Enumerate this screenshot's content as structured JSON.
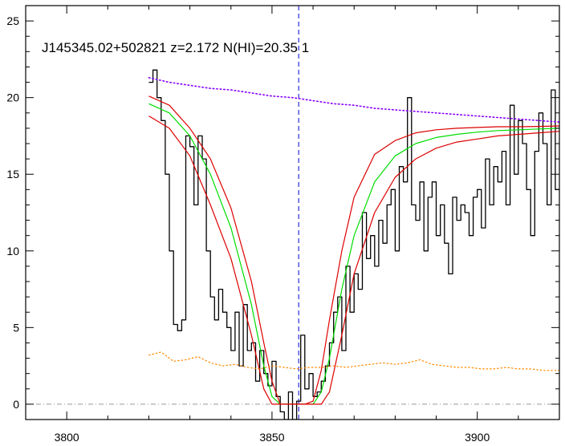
{
  "chart_data": {
    "type": "line",
    "title": "J145345.02+502821 z=2.172 N(HI)=20.35 1",
    "xlabel": "",
    "ylabel": "",
    "xlim": [
      3790,
      3920
    ],
    "ylim": [
      -1,
      26
    ],
    "x_ticks": [
      3800,
      3850,
      3900
    ],
    "x_tick_labels": [
      "3800",
      "3850",
      "3900"
    ],
    "y_ticks": [
      0,
      5,
      10,
      15,
      20,
      25
    ],
    "y_tick_labels": [
      "0",
      "5",
      "10",
      "15",
      "20",
      "25"
    ],
    "grid": false,
    "legend": "none",
    "colors": {
      "flux": "#000000",
      "model": "#00dd00",
      "model_bounds": "#dd0000",
      "continuum": "#8800ff",
      "error": "#ff8800",
      "zero_line": "#999999",
      "center_line": "#0000cc"
    },
    "center_wavelength": 3856.5,
    "zero_level": 0,
    "series": [
      {
        "style": "step",
        "x": [
          3820.5,
          3821.5,
          3822.5,
          3823.5,
          3824.5,
          3825.5,
          3826.5,
          3827.5,
          3828.5,
          3829.5,
          3830.5,
          3831.5,
          3832.5,
          3833.5,
          3834.5,
          3835.5,
          3836.5,
          3837.5,
          3838.5,
          3839.5,
          3840.5,
          3841.5,
          3842.5,
          3843.5,
          3844.5,
          3845.5,
          3846.5,
          3847.5,
          3848.5,
          3849.5,
          3850.5,
          3851.5,
          3852.5,
          3853.5,
          3854.5,
          3855.5,
          3856.5,
          3857.5,
          3858.5,
          3859.5,
          3860.5,
          3861.5,
          3862.5,
          3863.5,
          3864.5,
          3865.5,
          3866.5,
          3867.5,
          3868.5,
          3869.5,
          3870.5,
          3871.5,
          3872.5,
          3873.5,
          3874.5,
          3875.5,
          3876.5,
          3877.5,
          3878.5,
          3879.5,
          3880.5,
          3881.5,
          3882.5,
          3883.5,
          3884.5,
          3885.5,
          3886.5,
          3887.5,
          3888.5,
          3889.5,
          3890.5,
          3891.5,
          3892.5,
          3893.5,
          3894.5,
          3895.5,
          3896.5,
          3897.5,
          3898.5,
          3899.5,
          3900.5,
          3901.5,
          3902.5,
          3903.5,
          3904.5,
          3905.5,
          3906.5,
          3907.5,
          3908.5,
          3909.5,
          3910.5,
          3911.5,
          3912.5,
          3913.5,
          3914.5,
          3915.5,
          3916.5,
          3917.5,
          3918.5,
          3919.5
        ],
        "y": [
          21.0,
          21.8,
          20.0,
          18.5,
          15.0,
          10.0,
          5.2,
          4.8,
          5.5,
          17.5,
          16.8,
          13.0,
          17.5,
          16.0,
          10.0,
          7.0,
          5.5,
          7.5,
          6.0,
          5.0,
          3.5,
          6.0,
          2.5,
          6.5,
          3.5,
          4.0,
          1.5,
          3.5,
          2.0,
          1.2,
          2.8,
          0.5,
          -0.5,
          -1.0,
          0.8,
          -1.0,
          0.2,
          4.5,
          1.0,
          2.0,
          0.5,
          0.8,
          1.5,
          2.5,
          4.0,
          6.0,
          7.0,
          3.5,
          9.0,
          6.0,
          8.5,
          7.5,
          12.5,
          9.5,
          11.0,
          9.0,
          12.0,
          10.5,
          13.0,
          14.0,
          10.0,
          15.5,
          14.5,
          20.0,
          13.0,
          12.0,
          14.5,
          10.0,
          13.5,
          14.5,
          11.0,
          13.0,
          10.5,
          8.5,
          13.5,
          12.0,
          13.0,
          12.5,
          11.0,
          13.5,
          14.0,
          11.5,
          16.0,
          13.0,
          15.5,
          14.5,
          16.5,
          13.0,
          19.5,
          15.0,
          18.5,
          17.0,
          14.0,
          11.0,
          16.5,
          19.0,
          17.0,
          13.0,
          20.5,
          14.0
        ]
      },
      {
        "style": "line",
        "x": [
          3820,
          3825,
          3830,
          3835,
          3840,
          3845,
          3848,
          3850,
          3852,
          3854,
          3856,
          3858,
          3860,
          3862,
          3864,
          3867,
          3870,
          3875,
          3880,
          3885,
          3890,
          3895,
          3900,
          3905,
          3910,
          3915,
          3920
        ],
        "y": [
          19.6,
          19.0,
          17.5,
          15.0,
          11.5,
          6.5,
          2.5,
          0.5,
          0.0,
          0.0,
          0.0,
          0.0,
          0.0,
          0.8,
          3.0,
          7.5,
          11.0,
          14.5,
          16.2,
          17.0,
          17.4,
          17.6,
          17.75,
          17.85,
          17.9,
          17.95,
          18.0
        ]
      },
      {
        "style": "line",
        "x": [
          3820,
          3825,
          3830,
          3835,
          3840,
          3845,
          3848,
          3850,
          3852,
          3854,
          3856,
          3858,
          3860,
          3862,
          3864,
          3867,
          3870,
          3875,
          3880,
          3885,
          3890,
          3895,
          3900,
          3905,
          3910,
          3915,
          3920
        ],
        "y": [
          20.1,
          19.5,
          18.0,
          16.0,
          12.8,
          8.0,
          4.0,
          1.5,
          0.0,
          0.0,
          0.0,
          0.0,
          0.2,
          2.2,
          5.5,
          10.0,
          13.5,
          16.3,
          17.2,
          17.7,
          17.9,
          18.0,
          18.05,
          18.1,
          18.1,
          18.12,
          18.15
        ]
      },
      {
        "style": "line",
        "x": [
          3820,
          3825,
          3830,
          3835,
          3840,
          3845,
          3848,
          3850,
          3852,
          3854,
          3856,
          3858,
          3860,
          3862,
          3864,
          3867,
          3870,
          3875,
          3880,
          3885,
          3890,
          3895,
          3900,
          3905,
          3910,
          3915,
          3920
        ],
        "y": [
          18.8,
          18.0,
          16.2,
          13.0,
          9.5,
          4.5,
          1.0,
          0.0,
          0.0,
          0.0,
          0.0,
          0.0,
          0.0,
          0.0,
          0.8,
          4.5,
          8.5,
          12.5,
          14.8,
          16.0,
          16.7,
          17.1,
          17.3,
          17.5,
          17.6,
          17.7,
          17.8
        ]
      },
      {
        "style": "dotted",
        "x": [
          3820,
          3825,
          3830,
          3835,
          3840,
          3845,
          3850,
          3855,
          3860,
          3865,
          3870,
          3875,
          3880,
          3885,
          3890,
          3895,
          3900,
          3905,
          3910,
          3915,
          3920
        ],
        "y": [
          21.3,
          21.0,
          20.8,
          20.6,
          20.5,
          20.3,
          20.1,
          20.0,
          19.8,
          19.6,
          19.5,
          19.3,
          19.2,
          19.1,
          19.0,
          18.9,
          18.8,
          18.7,
          18.6,
          18.5,
          18.4
        ]
      },
      {
        "style": "dotted",
        "x": [
          3820,
          3823,
          3826,
          3829,
          3832,
          3835,
          3838,
          3841,
          3844,
          3847,
          3850,
          3853,
          3856,
          3859,
          3862,
          3865,
          3868,
          3871,
          3874,
          3877,
          3880,
          3883,
          3886,
          3889,
          3892,
          3895,
          3898,
          3901,
          3904,
          3907,
          3910,
          3913,
          3916,
          3920
        ],
        "y": [
          3.2,
          3.4,
          2.8,
          2.9,
          3.1,
          2.7,
          2.5,
          2.6,
          2.4,
          2.3,
          2.5,
          2.4,
          2.3,
          2.4,
          2.4,
          2.5,
          2.4,
          2.5,
          2.6,
          2.7,
          2.6,
          2.7,
          2.9,
          2.6,
          2.5,
          2.4,
          2.4,
          2.3,
          2.3,
          2.4,
          2.3,
          2.3,
          2.2,
          2.2
        ]
      }
    ]
  }
}
